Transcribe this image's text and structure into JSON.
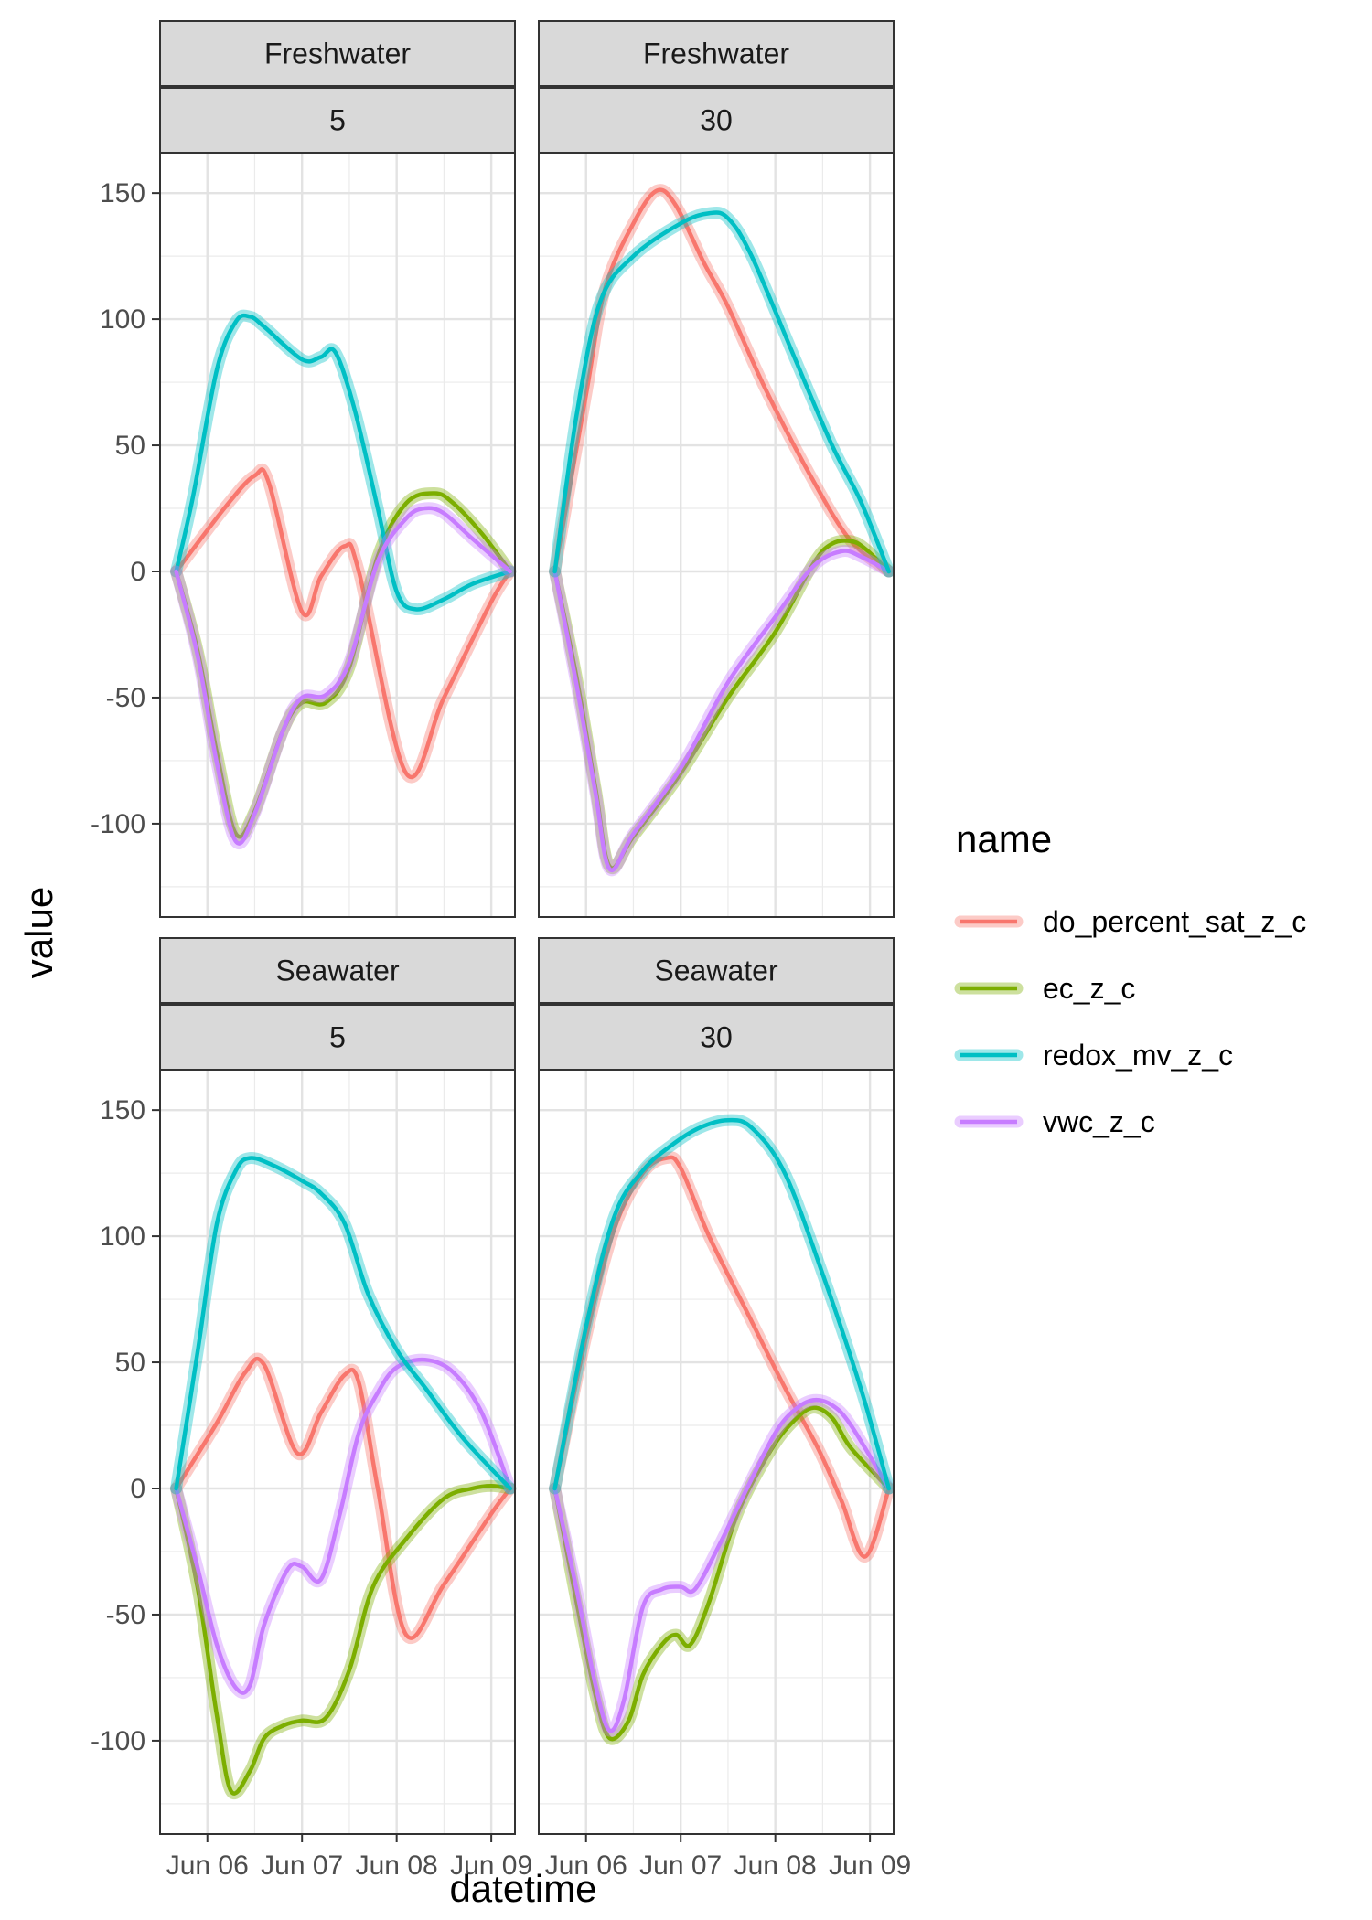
{
  "chart_data": {
    "type": "line",
    "xlabel": "datetime",
    "ylabel": "value",
    "x_tick_labels": [
      "Jun 06",
      "Jun 07",
      "Jun 08",
      "Jun 09"
    ],
    "y_tick_labels": [
      "-100",
      "-50",
      "0",
      "50",
      "100",
      "150"
    ],
    "y_ticks": [
      -100,
      -50,
      0,
      50,
      100,
      150
    ],
    "ylim": [
      -137,
      166
    ],
    "xlim": [
      -0.5,
      3.25
    ],
    "x_unit": "days from Jun 06",
    "grid": true,
    "legend": {
      "title": "name",
      "position": "right",
      "entries": [
        {
          "name": "do_percent_sat_z_c",
          "color": "#F8766D"
        },
        {
          "name": "ec_z_c",
          "color": "#7CAE00"
        },
        {
          "name": "redox_mv_z_c",
          "color": "#00BFC4"
        },
        {
          "name": "vwc_z_c",
          "color": "#C77CFF"
        }
      ]
    },
    "panels": [
      {
        "strip_top": "Freshwater",
        "strip_bottom": "5",
        "series": [
          {
            "name": "do_percent_sat_z_c",
            "x": [
              -0.33,
              0.2,
              0.5,
              0.65,
              1.0,
              1.2,
              1.45,
              1.6,
              2.1,
              2.5,
              3.0,
              3.2
            ],
            "y": [
              0,
              26,
              38,
              35,
              -16,
              -2,
              10,
              0,
              -80,
              -50,
              -12,
              0
            ]
          },
          {
            "name": "ec_z_c",
            "x": [
              -0.33,
              -0.1,
              0.1,
              0.3,
              0.5,
              0.8,
              1.0,
              1.25,
              1.5,
              1.8,
              2.1,
              2.4,
              2.6,
              2.9,
              3.2
            ],
            "y": [
              0,
              -32,
              -72,
              -104,
              -95,
              -63,
              -52,
              -52,
              -38,
              6,
              27,
              31,
              27,
              15,
              0
            ]
          },
          {
            "name": "redox_mv_z_c",
            "x": [
              -0.33,
              -0.15,
              0.1,
              0.3,
              0.45,
              0.6,
              1.0,
              1.2,
              1.35,
              1.55,
              1.8,
              2.0,
              2.2,
              2.5,
              2.8,
              3.2
            ],
            "y": [
              0,
              30,
              80,
              99,
              101,
              97,
              84,
              85,
              87,
              65,
              25,
              -8,
              -15,
              -11,
              -5,
              0
            ]
          },
          {
            "name": "vwc_z_c",
            "x": [
              -0.33,
              -0.1,
              0.1,
              0.3,
              0.5,
              0.8,
              1.0,
              1.25,
              1.5,
              1.8,
              2.1,
              2.3,
              2.5,
              2.8,
              3.2
            ],
            "y": [
              0,
              -34,
              -76,
              -107,
              -96,
              -63,
              -50,
              -49,
              -36,
              4,
              21,
              25,
              23,
              13,
              0
            ]
          }
        ]
      },
      {
        "strip_top": "Freshwater",
        "strip_bottom": "30",
        "series": [
          {
            "name": "do_percent_sat_z_c",
            "x": [
              -0.33,
              0.0,
              0.2,
              0.5,
              0.75,
              0.95,
              1.25,
              1.5,
              1.9,
              2.4,
              2.8,
              3.2
            ],
            "y": [
              0,
              70,
              112,
              138,
              151,
              145,
              122,
              105,
              72,
              36,
              12,
              0
            ]
          },
          {
            "name": "ec_z_c",
            "x": [
              -0.33,
              -0.1,
              0.1,
              0.25,
              0.5,
              1.0,
              1.5,
              2.0,
              2.4,
              2.6,
              2.8,
              2.95,
              3.2
            ],
            "y": [
              0,
              -42,
              -86,
              -117,
              -105,
              -80,
              -50,
              -24,
              3,
              11,
              12,
              9,
              0
            ]
          },
          {
            "name": "vwc_z_c",
            "x": [
              -0.33,
              -0.1,
              0.1,
              0.25,
              0.5,
              1.0,
              1.5,
              2.0,
              2.4,
              2.7,
              2.9,
              3.2
            ],
            "y": [
              0,
              -45,
              -88,
              -118,
              -104,
              -78,
              -44,
              -18,
              2,
              8,
              6,
              0
            ]
          },
          {
            "name": "redox_mv_z_c",
            "x": [
              -0.33,
              -0.1,
              0.15,
              0.5,
              1.0,
              1.3,
              1.5,
              1.75,
              2.2,
              2.6,
              2.9,
              3.2
            ],
            "y": [
              0,
              62,
              107,
              125,
              138,
              142,
              140,
              125,
              85,
              50,
              28,
              0
            ]
          }
        ]
      },
      {
        "strip_top": "Seawater",
        "strip_bottom": "5",
        "series": [
          {
            "name": "do_percent_sat_z_c",
            "x": [
              -0.33,
              0.1,
              0.4,
              0.6,
              0.95,
              1.2,
              1.45,
              1.6,
              1.8,
              2.1,
              2.5,
              3.0,
              3.2
            ],
            "y": [
              0,
              26,
              46,
              49,
              14,
              30,
              45,
              42,
              0,
              -58,
              -38,
              -10,
              0
            ]
          },
          {
            "name": "ec_z_c",
            "x": [
              -0.33,
              -0.1,
              0.1,
              0.25,
              0.45,
              0.6,
              0.8,
              1.0,
              1.25,
              1.5,
              1.75,
              2.1,
              2.5,
              2.8,
              3.0,
              3.2
            ],
            "y": [
              0,
              -40,
              -90,
              -120,
              -112,
              -99,
              -94,
              -92,
              -91,
              -72,
              -39,
              -20,
              -4,
              0,
              1,
              0
            ]
          },
          {
            "name": "vwc_z_c",
            "x": [
              -0.33,
              -0.1,
              0.1,
              0.3,
              0.45,
              0.6,
              0.85,
              1.0,
              1.2,
              1.4,
              1.6,
              1.8,
              2.0,
              2.3,
              2.6,
              2.9,
              3.2
            ],
            "y": [
              0,
              -32,
              -62,
              -79,
              -78,
              -54,
              -32,
              -31,
              -36,
              -10,
              22,
              38,
              48,
              51,
              46,
              30,
              0
            ]
          },
          {
            "name": "redox_mv_z_c",
            "x": [
              -0.33,
              -0.1,
              0.1,
              0.3,
              0.45,
              0.7,
              1.0,
              1.2,
              1.45,
              1.7,
              2.0,
              2.3,
              2.7,
              3.2
            ],
            "y": [
              0,
              55,
              105,
              126,
              131,
              128,
              122,
              117,
              105,
              77,
              55,
              40,
              20,
              0
            ]
          }
        ]
      },
      {
        "strip_top": "Seawater",
        "strip_bottom": "30",
        "series": [
          {
            "name": "do_percent_sat_z_c",
            "x": [
              -0.33,
              0.0,
              0.3,
              0.6,
              0.85,
              1.0,
              1.3,
              1.7,
              2.1,
              2.45,
              2.7,
              2.95,
              3.2
            ],
            "y": [
              0,
              60,
              103,
              125,
              131,
              127,
              100,
              70,
              40,
              16,
              -5,
              -27,
              0
            ]
          },
          {
            "name": "ec_z_c",
            "x": [
              -0.33,
              -0.1,
              0.1,
              0.25,
              0.45,
              0.6,
              0.8,
              0.95,
              1.1,
              1.3,
              1.6,
              1.95,
              2.2,
              2.4,
              2.6,
              2.8,
              3.2
            ],
            "y": [
              0,
              -45,
              -82,
              -99,
              -92,
              -74,
              -62,
              -58,
              -62,
              -45,
              -10,
              15,
              27,
              32,
              28,
              16,
              0
            ]
          },
          {
            "name": "vwc_z_c",
            "x": [
              -0.33,
              -0.1,
              0.1,
              0.25,
              0.4,
              0.6,
              0.8,
              1.0,
              1.15,
              1.4,
              1.7,
              2.0,
              2.2,
              2.4,
              2.6,
              2.8,
              3.2
            ],
            "y": [
              0,
              -40,
              -78,
              -96,
              -84,
              -47,
              -40,
              -39,
              -40,
              -23,
              0,
              22,
              31,
              35,
              33,
              25,
              0
            ]
          },
          {
            "name": "redox_mv_z_c",
            "x": [
              -0.33,
              0.0,
              0.3,
              0.6,
              0.9,
              1.2,
              1.5,
              1.75,
              2.1,
              2.5,
              2.9,
              3.2
            ],
            "y": [
              0,
              64,
              108,
              126,
              136,
              143,
              146,
              143,
              125,
              85,
              40,
              0
            ]
          }
        ]
      }
    ]
  }
}
